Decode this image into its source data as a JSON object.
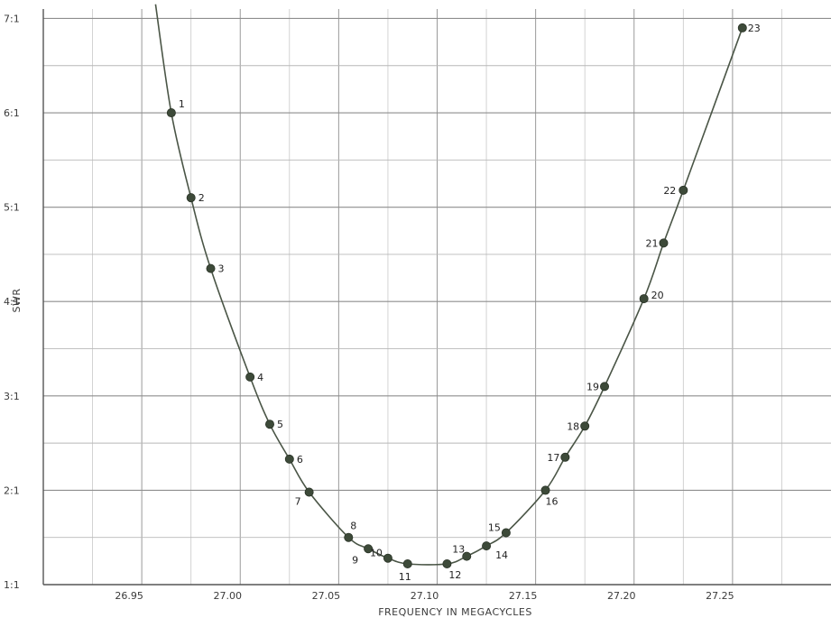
{
  "chart_data": {
    "type": "line",
    "title": "",
    "xlabel": "FREQUENCY IN MEGACYCLES",
    "ylabel": "SWR",
    "xlim": [
      26.9,
      27.3
    ],
    "ylim": [
      1,
      7.1
    ],
    "x_ticks": [
      26.95,
      27.0,
      27.05,
      27.1,
      27.15,
      27.2,
      27.25
    ],
    "x_tick_labels": [
      "26.95",
      "27.00",
      "27.05",
      "27.10",
      "27.15",
      "27.20",
      "27.25"
    ],
    "y_ticks": [
      1,
      2,
      3,
      4,
      5,
      6,
      7
    ],
    "y_tick_labels": [
      "1:1",
      "2:1",
      "3:1",
      "4:1",
      "5:1",
      "6:1",
      "7:1"
    ],
    "grid": true,
    "line_color": "#4a5546",
    "point_color": "#3d4a39",
    "series": [
      {
        "points": [
          {
            "label": "1",
            "x": 26.965,
            "y": 6.0
          },
          {
            "label": "2",
            "x": 26.975,
            "y": 5.1
          },
          {
            "label": "3",
            "x": 26.985,
            "y": 4.35
          },
          {
            "label": "4",
            "x": 27.005,
            "y": 3.2
          },
          {
            "label": "5",
            "x": 27.015,
            "y": 2.7
          },
          {
            "label": "6",
            "x": 27.025,
            "y": 2.33
          },
          {
            "label": "7",
            "x": 27.035,
            "y": 1.98
          },
          {
            "label": "8",
            "x": 27.055,
            "y": 1.5
          },
          {
            "label": "9",
            "x": 27.065,
            "y": 1.38
          },
          {
            "label": "10",
            "x": 27.075,
            "y": 1.28
          },
          {
            "label": "11",
            "x": 27.085,
            "y": 1.22
          },
          {
            "label": "12",
            "x": 27.105,
            "y": 1.22
          },
          {
            "label": "13",
            "x": 27.115,
            "y": 1.3
          },
          {
            "label": "14",
            "x": 27.125,
            "y": 1.41
          },
          {
            "label": "15",
            "x": 27.135,
            "y": 1.55
          },
          {
            "label": "16",
            "x": 27.155,
            "y": 2.0
          },
          {
            "label": "17",
            "x": 27.165,
            "y": 2.35
          },
          {
            "label": "18",
            "x": 27.175,
            "y": 2.68
          },
          {
            "label": "19",
            "x": 27.185,
            "y": 3.1
          },
          {
            "label": "20",
            "x": 27.205,
            "y": 4.03
          },
          {
            "label": "21",
            "x": 27.215,
            "y": 4.62
          },
          {
            "label": "22",
            "x": 27.225,
            "y": 5.18
          },
          {
            "label": "23",
            "x": 27.255,
            "y": 6.9
          }
        ],
        "curve_start": {
          "x": 26.957,
          "y": 7.15
        }
      }
    ]
  }
}
